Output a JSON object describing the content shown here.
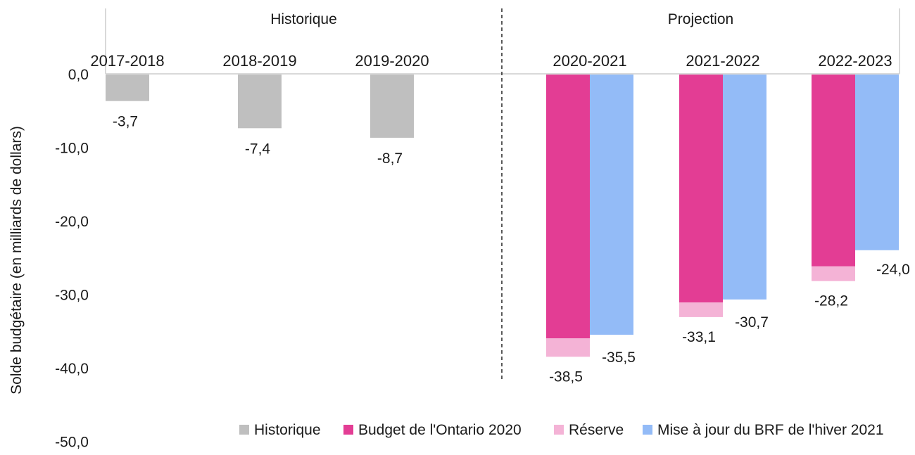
{
  "chart_data": {
    "type": "bar",
    "ylabel": "Solde budgétaire (en milliards de dollars)",
    "ylim": [
      -50,
      0
    ],
    "yticks": [
      0,
      -10,
      -20,
      -30,
      -40,
      -50
    ],
    "ytick_labels": [
      "0,0",
      "-10,0",
      "-20,0",
      "-30,0",
      "-40,0",
      "-50,0"
    ],
    "sections": [
      {
        "label": "Historique",
        "categories": [
          "2017-2018",
          "2018-2019",
          "2019-2020"
        ]
      },
      {
        "label": "Projection",
        "categories": [
          "2020-2021",
          "2021-2022",
          "2022-2023"
        ]
      }
    ],
    "categories": [
      "2017-2018",
      "2018-2019",
      "2019-2020",
      "2020-2021",
      "2021-2022",
      "2022-2023"
    ],
    "series": [
      {
        "name": "Historique",
        "color": "#bfbfbf",
        "values": [
          -3.7,
          -7.4,
          -8.7,
          null,
          null,
          null
        ]
      },
      {
        "name": "Budget de l'Ontario 2020",
        "color": "#e33d94",
        "values": [
          null,
          null,
          null,
          -36.0,
          -31.1,
          -26.2
        ]
      },
      {
        "name": "Réserve",
        "color": "#f4b3d6",
        "values": [
          null,
          null,
          null,
          -2.5,
          -2.0,
          -2.0
        ]
      },
      {
        "name": "Mise à jour du BRF de l'hiver 2021",
        "color": "#93bbf7",
        "values": [
          null,
          null,
          null,
          -35.5,
          -30.7,
          -24.0
        ]
      }
    ],
    "data_labels": {
      "historique": [
        "-3,7",
        "-7,4",
        "-8,7"
      ],
      "budget_total": [
        "-38,5",
        "-33,1",
        "-28,2"
      ],
      "brf": [
        "-35,5",
        "-30,7",
        "-24,0"
      ]
    },
    "legend_position": "bottom-right",
    "grid": false
  }
}
